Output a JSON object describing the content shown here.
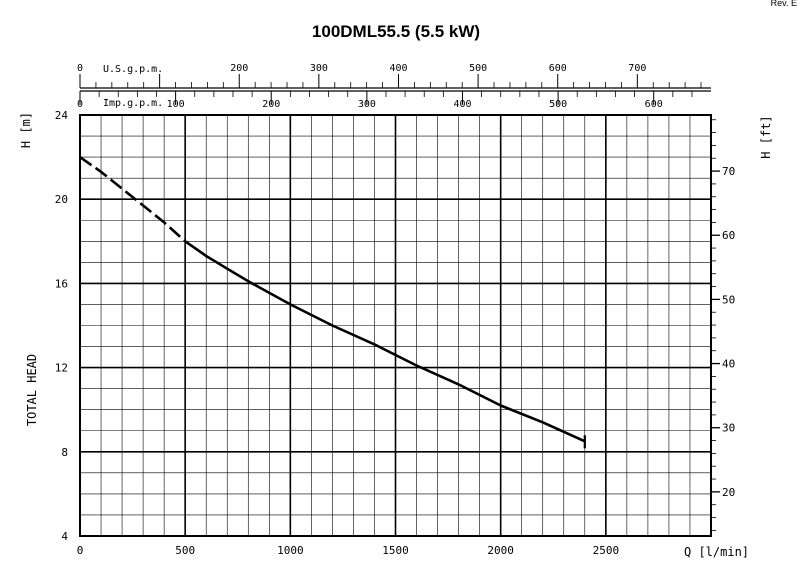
{
  "revision": "Rev. E",
  "chart_data": {
    "type": "line",
    "title": "100DML55.5 (5.5 kW)",
    "xlabel": "Q [l/min]",
    "ylabel_left": "TOTAL HEAD",
    "ylabel_left_unit": "H [m]",
    "ylabel_right_unit": "H [ft]",
    "xlim": [
      0,
      3000
    ],
    "ylim": [
      4,
      24
    ],
    "grid": true,
    "x_ticks": [
      "0",
      "500",
      "1000",
      "1500",
      "2000",
      "2500"
    ],
    "x_tick_values": [
      0,
      500,
      1000,
      1500,
      2000,
      2500
    ],
    "y_ticks": [
      "4",
      "8",
      "12",
      "16",
      "20",
      "24"
    ],
    "y_tick_values": [
      4,
      8,
      12,
      16,
      20,
      24
    ],
    "ft_ticks": [
      "20",
      "30",
      "40",
      "50",
      "60",
      "70"
    ],
    "ft_tick_values": [
      20,
      30,
      40,
      50,
      60,
      70
    ],
    "usgpm_label": "U.S.g.p.m.",
    "usgpm_ticks": [
      "0",
      "200",
      "300",
      "400",
      "500",
      "600",
      "700"
    ],
    "usgpm_tick_values": [
      0,
      200,
      300,
      400,
      500,
      600,
      700
    ],
    "impgpm_label": "Imp.g.p.m.",
    "impgpm_ticks": [
      "0",
      "100",
      "200",
      "300",
      "400",
      "500",
      "600"
    ],
    "impgpm_tick_values": [
      0,
      100,
      200,
      300,
      400,
      500,
      600
    ],
    "series": [
      {
        "dashed_x": [
          0,
          100,
          200,
          300,
          400,
          500
        ],
        "dashed_y": [
          22.0,
          21.3,
          20.5,
          19.7,
          18.9,
          18.0
        ],
        "solid_x": [
          500,
          600,
          700,
          800,
          1000,
          1200,
          1400,
          1600,
          1800,
          2000,
          2200,
          2400
        ],
        "solid_y": [
          18.0,
          17.3,
          16.7,
          16.1,
          15.0,
          14.0,
          13.1,
          12.1,
          11.2,
          10.2,
          9.4,
          8.5
        ]
      }
    ]
  }
}
